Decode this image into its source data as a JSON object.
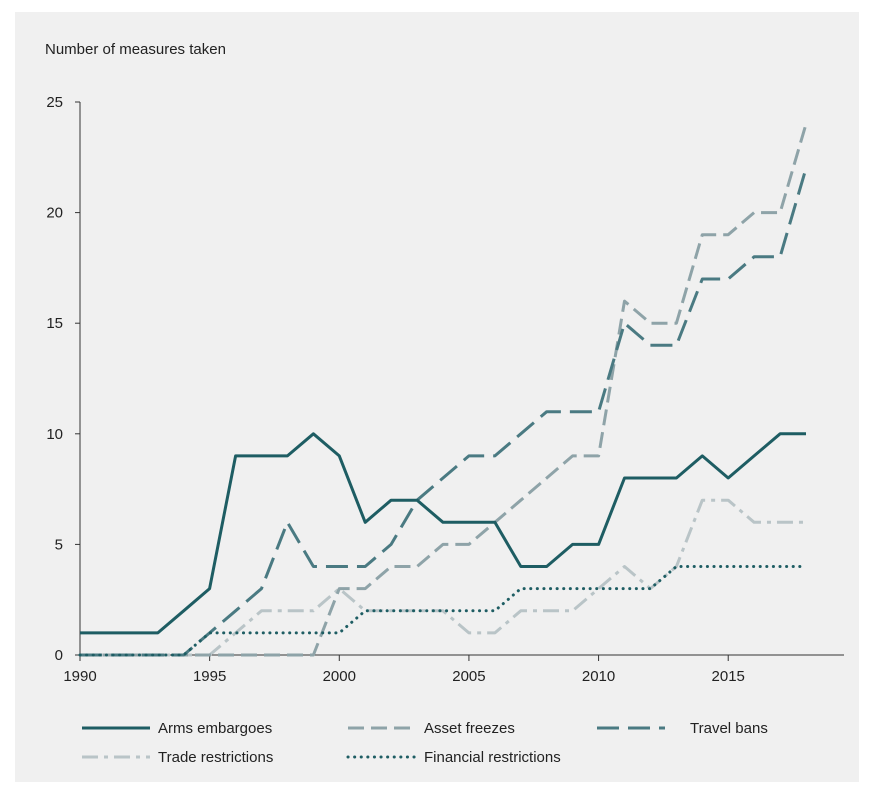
{
  "chart_data": {
    "type": "line",
    "ylabel": "Number of measures taken",
    "xlabel": "",
    "xlim": [
      1990,
      2018
    ],
    "ylim": [
      0,
      25
    ],
    "xticks": [
      1990,
      1995,
      2000,
      2005,
      2010,
      2015
    ],
    "yticks": [
      0,
      5,
      10,
      15,
      20,
      25
    ],
    "grid": false,
    "legend_position": "bottom",
    "x": [
      1990,
      1991,
      1992,
      1993,
      1994,
      1995,
      1996,
      1997,
      1998,
      1999,
      2000,
      2001,
      2002,
      2003,
      2004,
      2005,
      2006,
      2007,
      2008,
      2009,
      2010,
      2011,
      2012,
      2013,
      2014,
      2015,
      2016,
      2017,
      2018
    ],
    "series": [
      {
        "name": "Arms embargoes",
        "color": "#1e5d63",
        "style": "solid",
        "values": [
          1,
          1,
          1,
          1,
          2,
          3,
          9,
          9,
          9,
          10,
          9,
          6,
          7,
          7,
          6,
          6,
          6,
          4,
          4,
          5,
          5,
          8,
          8,
          8,
          9,
          8,
          9,
          10,
          10
        ]
      },
      {
        "name": "Asset freezes",
        "color": "#8ea3a8",
        "style": "dashed",
        "values": [
          0,
          0,
          0,
          0,
          0,
          0,
          0,
          0,
          0,
          0,
          3,
          3,
          4,
          4,
          5,
          5,
          6,
          7,
          8,
          9,
          9,
          16,
          15,
          15,
          19,
          19,
          20,
          20,
          24
        ]
      },
      {
        "name": "Travel bans",
        "color": "#4a7a82",
        "style": "longdash",
        "values": [
          0,
          0,
          0,
          0,
          0,
          1,
          2,
          3,
          6,
          4,
          4,
          4,
          5,
          7,
          8,
          9,
          9,
          10,
          11,
          11,
          11,
          15,
          14,
          14,
          17,
          17,
          18,
          18,
          22
        ]
      },
      {
        "name": "Trade restrictions",
        "color": "#b9c4c7",
        "style": "dashdot",
        "values": [
          0,
          0,
          0,
          0,
          0,
          0,
          1,
          2,
          2,
          2,
          3,
          2,
          2,
          2,
          2,
          1,
          1,
          2,
          2,
          2,
          3,
          4,
          3,
          4,
          7,
          7,
          6,
          6,
          6
        ]
      },
      {
        "name": "Financial restrictions",
        "color": "#1e5d63",
        "style": "dotted",
        "values": [
          0,
          0,
          0,
          0,
          0,
          1,
          1,
          1,
          1,
          1,
          1,
          2,
          2,
          2,
          2,
          2,
          2,
          3,
          3,
          3,
          3,
          3,
          3,
          4,
          4,
          4,
          4,
          4,
          4
        ]
      }
    ]
  }
}
